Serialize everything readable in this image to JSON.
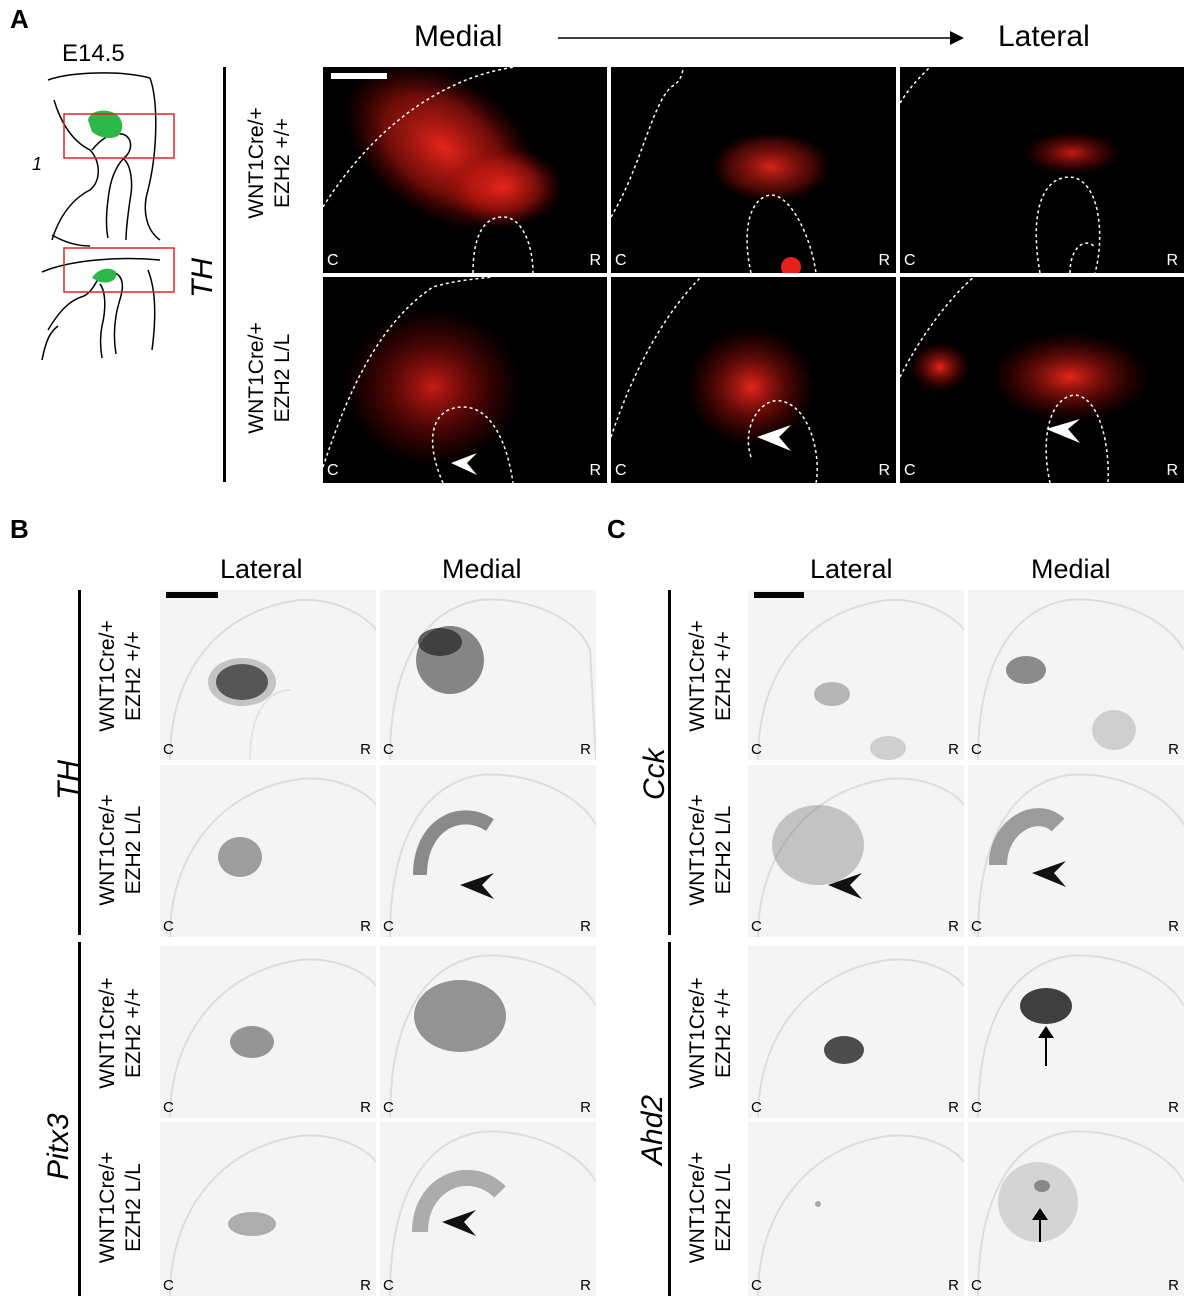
{
  "panels": {
    "a": "A",
    "b": "B",
    "c": "C"
  },
  "panel_a": {
    "stage": "E14.5",
    "medial": "Medial",
    "lateral": "Lateral",
    "gene": "TH",
    "row1": {
      "line1": "WNT1Cre/+",
      "line2": "EZH2 +/+"
    },
    "row2": {
      "line1": "WNT1Cre/+",
      "line2": "EZH2 L/L"
    },
    "caudal": "C",
    "rostral": "R",
    "colors": {
      "signal": "#e8201a",
      "background": "#000000",
      "schematic_fill": "#2db84a",
      "box": "#e0242a"
    }
  },
  "panel_b": {
    "lateral": "Lateral",
    "medial": "Medial",
    "gene1": "TH",
    "gene2": "Pitx3",
    "row1": {
      "line1": "WNT1Cre/+",
      "line2": "EZH2 +/+"
    },
    "row2": {
      "line1": "WNT1Cre/+",
      "line2": "EZH2 L/L"
    },
    "row3": {
      "line1": "WNT1Cre/+",
      "line2": "EZH2 +/+"
    },
    "row4": {
      "line1": "WNT1Cre/+",
      "line2": "EZH2 L/L"
    },
    "caudal": "C",
    "rostral": "R"
  },
  "panel_c": {
    "lateral": "Lateral",
    "medial": "Medial",
    "gene1": "Cck",
    "gene2": "Ahd2",
    "row1": {
      "line1": "WNT1Cre/+",
      "line2": "EZH2 +/+"
    },
    "row2": {
      "line1": "WNT1Cre/+",
      "line2": "EZH2 L/L"
    },
    "row3": {
      "line1": "WNT1Cre/+",
      "line2": "EZH2 +/+"
    },
    "row4": {
      "line1": "WNT1Cre/+",
      "line2": "EZH2 L/L"
    },
    "caudal": "C",
    "rostral": "R"
  }
}
